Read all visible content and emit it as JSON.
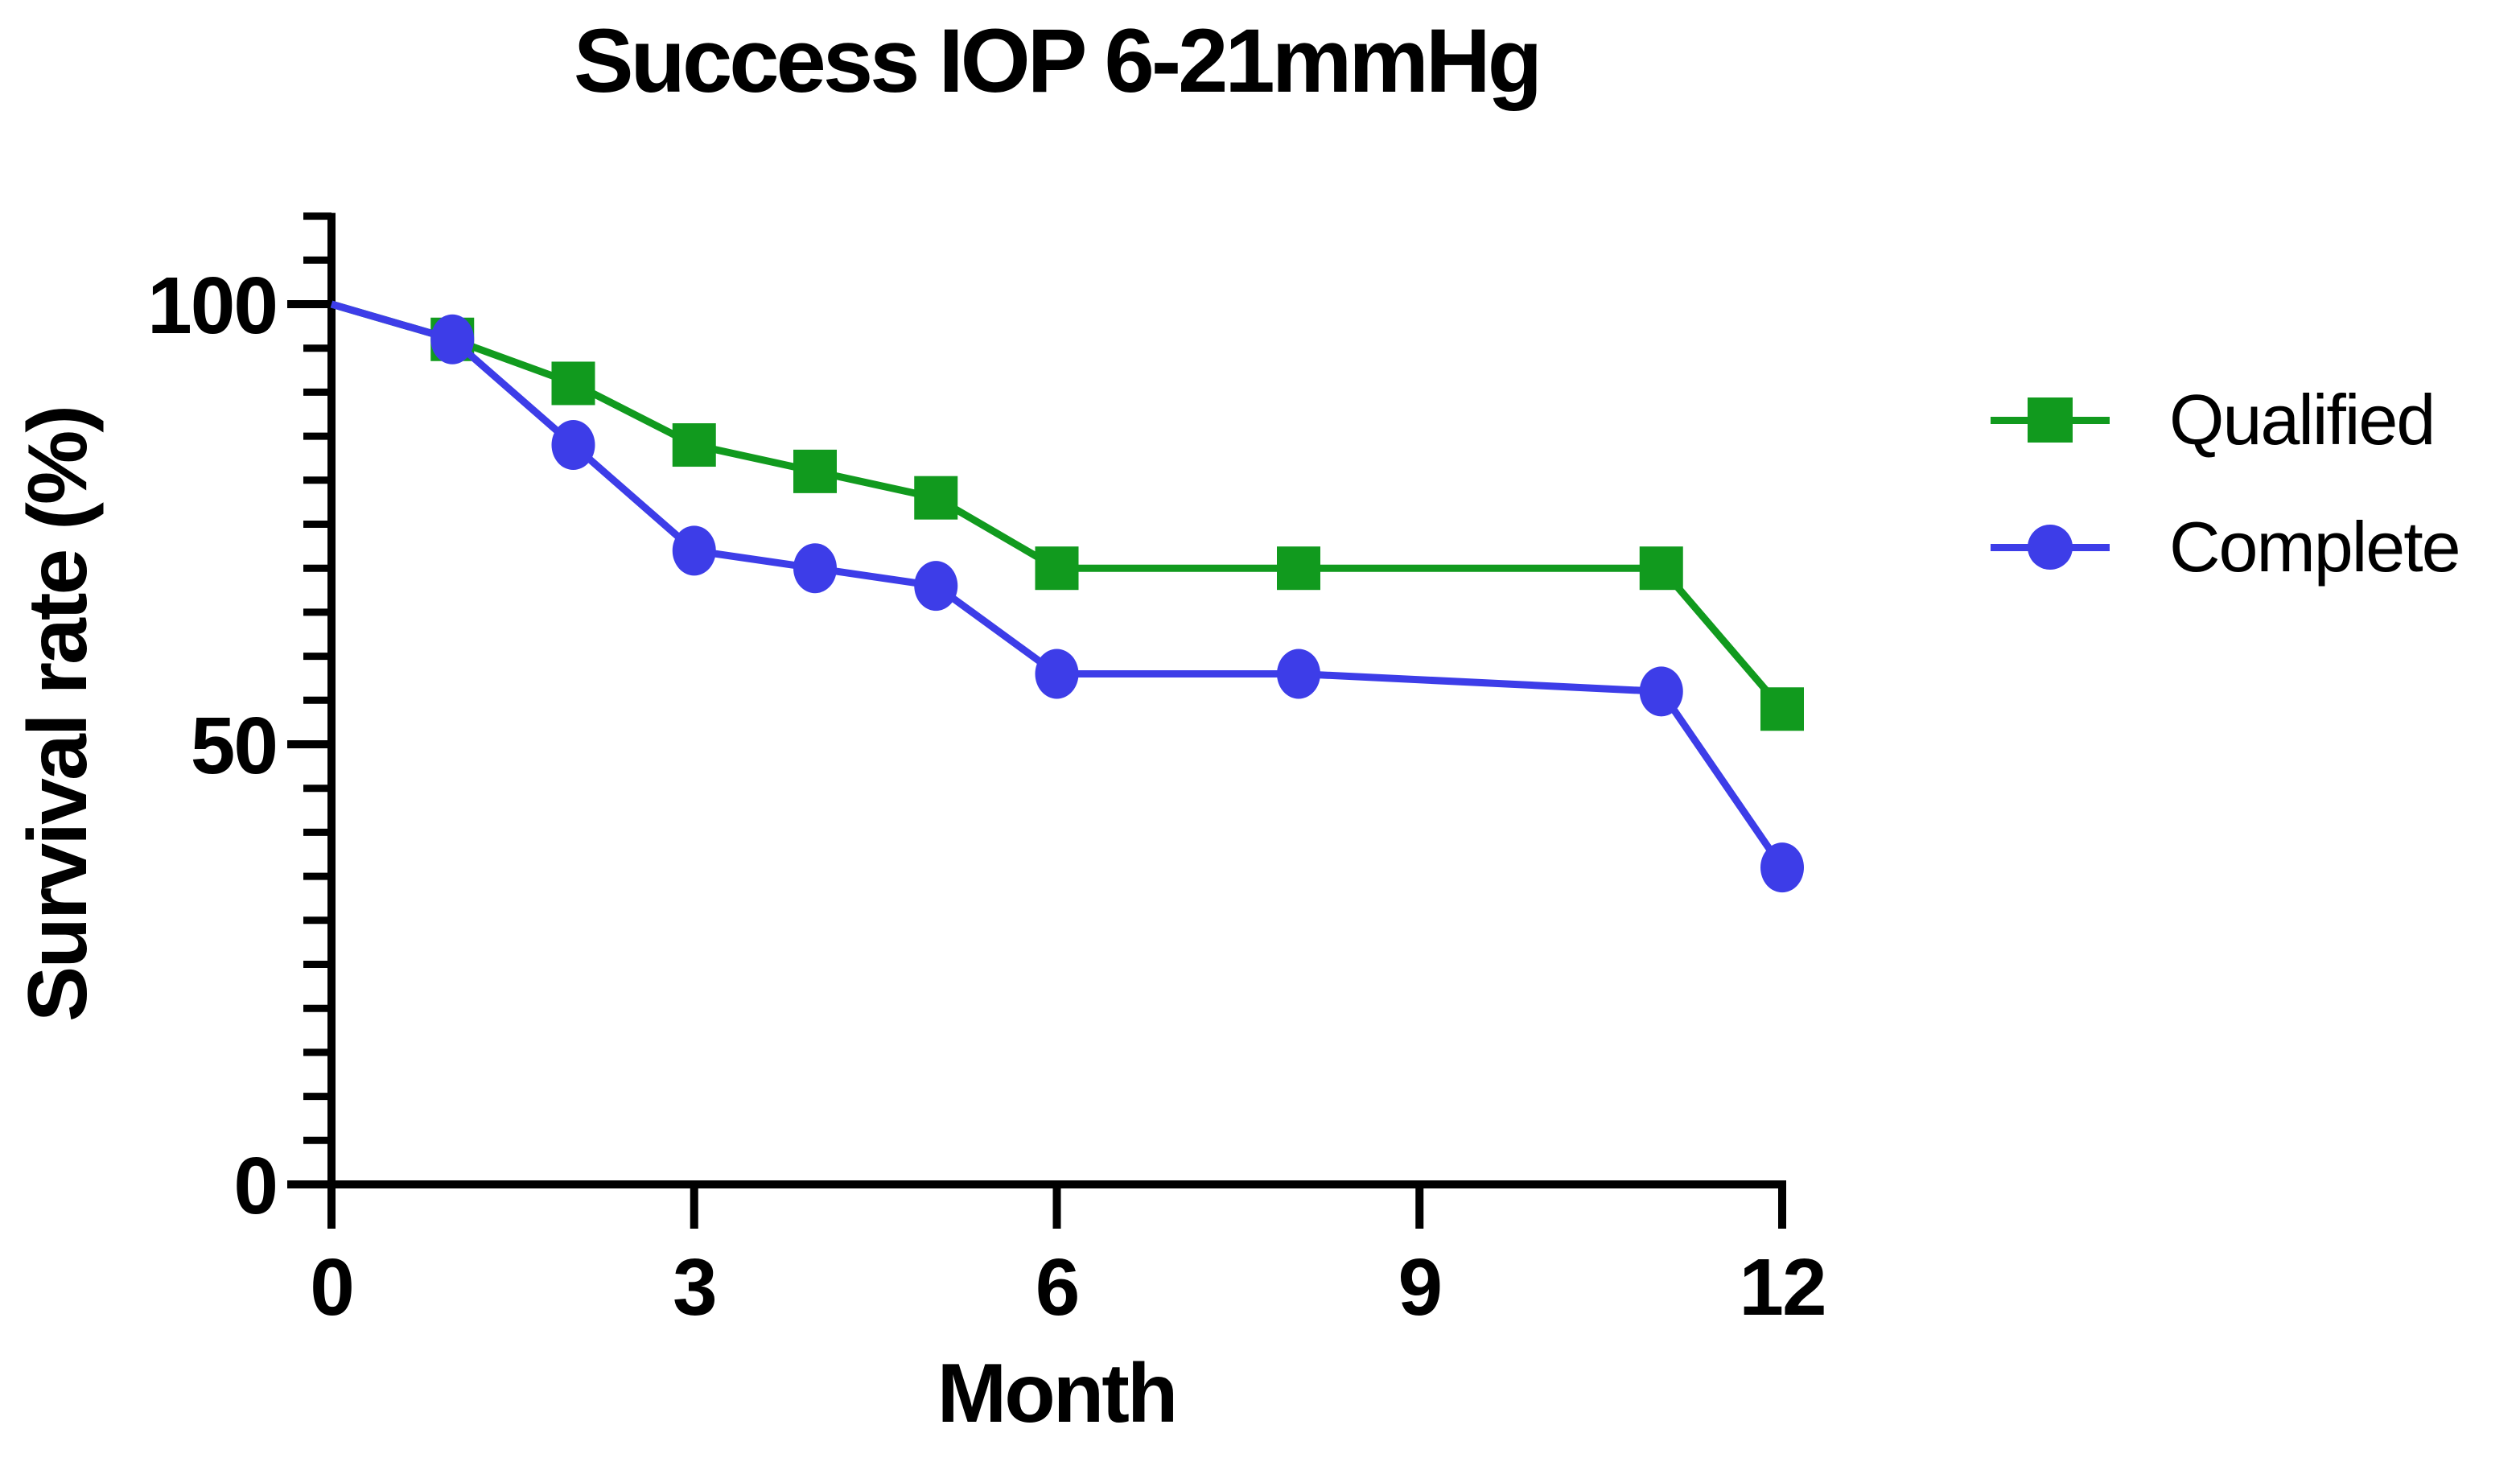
{
  "page": {
    "background": "#ffffff",
    "text_color": "#000000"
  },
  "chart_data": {
    "type": "line",
    "title": "Success IOP 6-21mmHg",
    "xlabel": "Month",
    "ylabel": "Survival rate (%)",
    "xlim": [
      0,
      12
    ],
    "ylim": [
      0,
      110
    ],
    "x_ticks": [
      0,
      3,
      6,
      9,
      12
    ],
    "y_ticks": [
      0,
      50,
      100
    ],
    "y_minor_tick_step": 5,
    "grid": false,
    "legend_position": "right",
    "axis_color": "#000000",
    "series": [
      {
        "name": "Qualified",
        "color": "#119a1e",
        "marker": "square",
        "x": [
          0,
          1,
          2,
          3,
          4,
          5,
          6,
          8,
          11,
          12
        ],
        "values": [
          100,
          96,
          91,
          84,
          81,
          78,
          70,
          70,
          70,
          54
        ]
      },
      {
        "name": "Complete",
        "color": "#3d3de8",
        "marker": "circle",
        "x": [
          0,
          1,
          2,
          3,
          4,
          5,
          6,
          8,
          11,
          12
        ],
        "values": [
          100,
          96,
          84,
          72,
          70,
          68,
          58,
          58,
          56,
          36
        ]
      }
    ]
  }
}
